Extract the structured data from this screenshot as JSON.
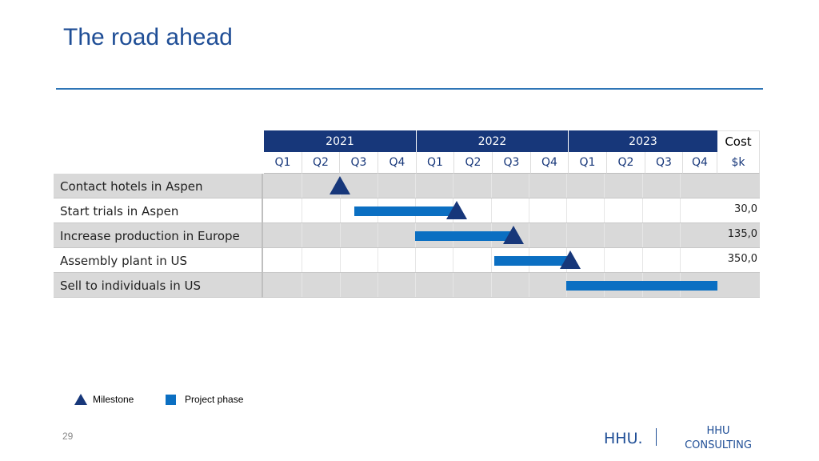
{
  "slide": {
    "title": "The road ahead",
    "page_number": "29",
    "logo_text": "HHU.",
    "company_line1": "HHU",
    "company_line2": "CONSULTING"
  },
  "gantt": {
    "years": [
      "2021",
      "2022",
      "2023"
    ],
    "quarters": [
      "Q1",
      "Q2",
      "Q3",
      "Q4",
      "Q1",
      "Q2",
      "Q3",
      "Q4",
      "Q1",
      "Q2",
      "Q3",
      "Q4"
    ],
    "cost_header": "Cost",
    "cost_unit": "$k",
    "rows": [
      {
        "label": "Contact hotels in Aspen",
        "cost": "",
        "phase_start": null,
        "phase_end": null,
        "milestone": 2.0
      },
      {
        "label": "Start trials in Aspen",
        "cost": "30,0",
        "phase_start": 2.4,
        "phase_end": 5.1,
        "milestone": 5.1
      },
      {
        "label": "Increase production in Europe",
        "cost": "135,0",
        "phase_start": 4.0,
        "phase_end": 6.6,
        "milestone": 6.6
      },
      {
        "label": "Assembly plant in US",
        "cost": "350,0",
        "phase_start": 6.1,
        "phase_end": 8.1,
        "milestone": 8.1
      },
      {
        "label": "Sell to individuals in US",
        "cost": "",
        "phase_start": 8.0,
        "phase_end": 12.0,
        "milestone": null
      }
    ]
  },
  "legend": {
    "milestone": "Milestone",
    "phase": "Project phase"
  },
  "colors": {
    "header": "#17377a",
    "phase": "#0b6fc2",
    "title": "#1f4e96"
  }
}
